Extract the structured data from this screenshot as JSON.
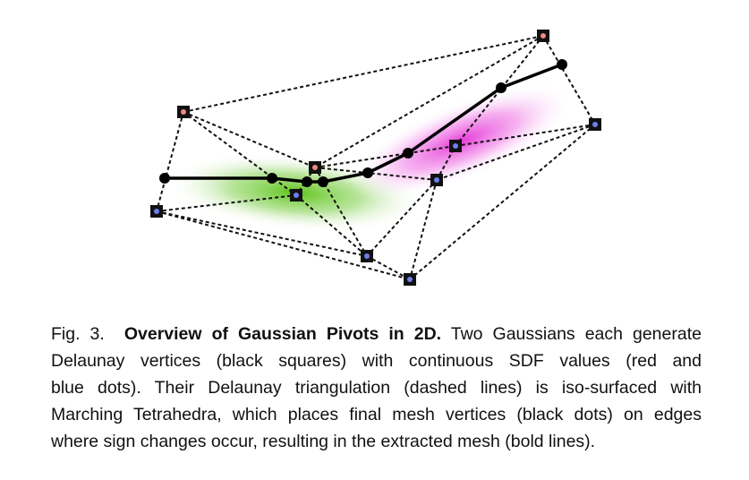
{
  "figure": {
    "colors": {
      "positive_sdf": "#f08a80",
      "negative_sdf": "#6f7ff0",
      "gaussian_1": "#5ec41a",
      "gaussian_2": "#e63ad8",
      "vertex_square": "#111111"
    },
    "delaunay_vertices": [
      {
        "id": "A",
        "sign": "positive"
      },
      {
        "id": "B",
        "sign": "positive"
      },
      {
        "id": "C",
        "sign": "positive"
      },
      {
        "id": "D",
        "sign": "negative"
      },
      {
        "id": "E",
        "sign": "negative"
      },
      {
        "id": "F",
        "sign": "negative"
      },
      {
        "id": "G",
        "sign": "negative"
      },
      {
        "id": "H",
        "sign": "negative"
      },
      {
        "id": "I",
        "sign": "negative"
      },
      {
        "id": "J",
        "sign": "negative"
      }
    ],
    "delaunay_edges": [
      [
        "A",
        "C"
      ],
      [
        "A",
        "D"
      ],
      [
        "A",
        "B"
      ],
      [
        "A",
        "E"
      ],
      [
        "C",
        "J"
      ],
      [
        "C",
        "I"
      ],
      [
        "C",
        "B"
      ],
      [
        "J",
        "I"
      ],
      [
        "J",
        "H"
      ],
      [
        "J",
        "G"
      ],
      [
        "B",
        "I"
      ],
      [
        "B",
        "H"
      ],
      [
        "B",
        "F"
      ],
      [
        "B",
        "E"
      ],
      [
        "D",
        "E"
      ],
      [
        "D",
        "F"
      ],
      [
        "D",
        "G"
      ],
      [
        "E",
        "F"
      ],
      [
        "H",
        "I"
      ],
      [
        "H",
        "F"
      ],
      [
        "H",
        "G"
      ],
      [
        "F",
        "G"
      ]
    ]
  },
  "caption": {
    "label": "Fig. 3.",
    "title": "Overview of Gaussian Pivots in 2D.",
    "line1_rest": "Two Gaussians each generate",
    "line2": "Delaunay vertices (black squares) with continuous SDF values (red and",
    "line3": "blue dots). Their Delaunay triangulation (dashed lines) is iso-surfaced with",
    "line4": "Marching Tetrahedra, which places final mesh vertices (black dots) on edges",
    "line5": "where sign changes occur, resulting in the extracted mesh (bold lines)."
  }
}
